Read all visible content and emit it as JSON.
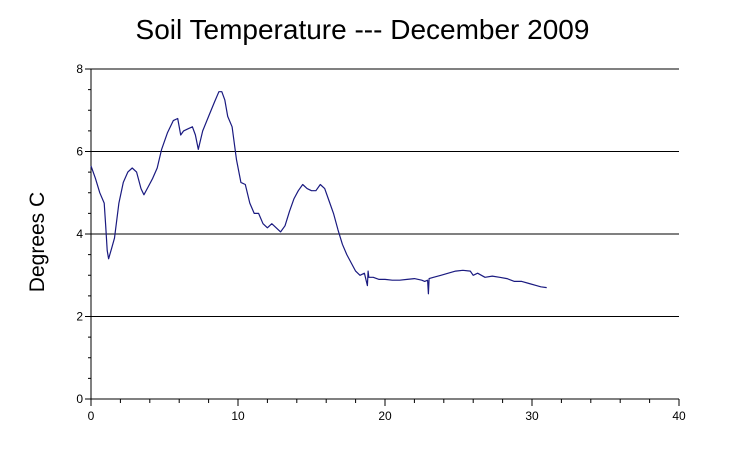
{
  "chart_data": {
    "type": "line",
    "title": "Soil Temperature --- December 2009",
    "xlabel": "",
    "ylabel": "Degrees C",
    "xlim": [
      0,
      40
    ],
    "ylim": [
      0,
      8
    ],
    "xticks": [
      "0",
      "10",
      "20",
      "30",
      "40"
    ],
    "yticks": [
      "0",
      "2",
      "4",
      "6",
      "8"
    ],
    "grid": "horizontal",
    "line_color": "#1a1a80",
    "series": [
      {
        "x": [
          0,
          0.3,
          0.6,
          0.9,
          1.0,
          1.1,
          1.2,
          1.4,
          1.6,
          1.9,
          2.2,
          2.5,
          2.8,
          3.1,
          3.4,
          3.6,
          3.9,
          4.2,
          4.5,
          4.8,
          5.2,
          5.6,
          5.9,
          6.1,
          6.3,
          6.6,
          6.9,
          7.1,
          7.3,
          7.6,
          8.0,
          8.4,
          8.7,
          8.9,
          9.1,
          9.3,
          9.6,
          9.9,
          10.2,
          10.5,
          10.8,
          11.1,
          11.4,
          11.7,
          12.0,
          12.3,
          12.6,
          12.9,
          13.2,
          13.5,
          13.8,
          14.1,
          14.4,
          14.7,
          15.0,
          15.3,
          15.6,
          15.9,
          16.2,
          16.5,
          16.8,
          17.1,
          17.4,
          17.7,
          18.0,
          18.3,
          18.6,
          18.8,
          18.85,
          18.9,
          19.2,
          19.6,
          20.0,
          20.5,
          21.0,
          21.5,
          22.0,
          22.5,
          22.7,
          22.9,
          22.95,
          23.0,
          23.3,
          23.8,
          24.3,
          24.8,
          25.3,
          25.8,
          26.0,
          26.3,
          26.8,
          27.3,
          27.8,
          28.3,
          28.8,
          29.3,
          29.8,
          30.3,
          30.6,
          31.0
        ],
        "y": [
          5.65,
          5.35,
          5.0,
          4.75,
          4.2,
          3.6,
          3.4,
          3.65,
          3.9,
          4.75,
          5.25,
          5.5,
          5.6,
          5.5,
          5.1,
          4.95,
          5.15,
          5.35,
          5.6,
          6.05,
          6.45,
          6.75,
          6.8,
          6.4,
          6.5,
          6.55,
          6.6,
          6.4,
          6.05,
          6.5,
          6.85,
          7.2,
          7.45,
          7.45,
          7.25,
          6.85,
          6.6,
          5.8,
          5.25,
          5.2,
          4.75,
          4.5,
          4.5,
          4.25,
          4.15,
          4.25,
          4.15,
          4.05,
          4.2,
          4.55,
          4.85,
          5.05,
          5.2,
          5.1,
          5.05,
          5.05,
          5.2,
          5.1,
          4.8,
          4.5,
          4.1,
          3.75,
          3.5,
          3.3,
          3.1,
          3.0,
          3.05,
          2.75,
          3.1,
          2.95,
          2.95,
          2.9,
          2.9,
          2.88,
          2.88,
          2.9,
          2.92,
          2.88,
          2.85,
          2.88,
          2.55,
          2.92,
          2.95,
          3.0,
          3.05,
          3.1,
          3.12,
          3.1,
          3.0,
          3.05,
          2.95,
          2.98,
          2.95,
          2.92,
          2.85,
          2.85,
          2.8,
          2.75,
          2.72,
          2.7
        ]
      }
    ]
  }
}
